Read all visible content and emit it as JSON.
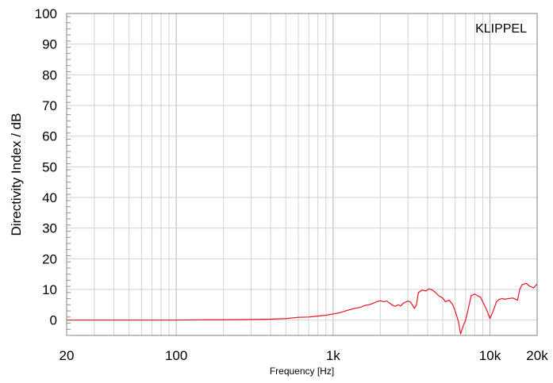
{
  "chart_data": {
    "type": "line",
    "xlabel": "Frequency [Hz]",
    "ylabel": "Directivity Index / dB",
    "x_scale": "log",
    "xlim": [
      20,
      20000
    ],
    "ylim": [
      -5,
      100
    ],
    "x_ticks": [
      {
        "value": 20,
        "label": "20"
      },
      {
        "value": 100,
        "label": "100"
      },
      {
        "value": 1000,
        "label": "1k"
      },
      {
        "value": 10000,
        "label": "10k"
      },
      {
        "value": 20000,
        "label": "20k"
      }
    ],
    "y_ticks": [
      {
        "value": 0,
        "label": "0"
      },
      {
        "value": 10,
        "label": "10"
      },
      {
        "value": 20,
        "label": "20"
      },
      {
        "value": 30,
        "label": "30"
      },
      {
        "value": 40,
        "label": "40"
      },
      {
        "value": 50,
        "label": "50"
      },
      {
        "value": 60,
        "label": "60"
      },
      {
        "value": 70,
        "label": "70"
      },
      {
        "value": 80,
        "label": "80"
      },
      {
        "value": 90,
        "label": "90"
      },
      {
        "value": 100,
        "label": "100"
      }
    ],
    "grid": true,
    "annotation": "KLIPPEL",
    "series": [
      {
        "color": "#e8141e",
        "x": [
          20,
          50,
          100,
          150,
          200,
          300,
          400,
          500,
          600,
          700,
          800,
          900,
          1000,
          1100,
          1200,
          1300,
          1400,
          1500,
          1600,
          1700,
          1800,
          1900,
          2000,
          2100,
          2200,
          2300,
          2400,
          2500,
          2600,
          2700,
          2800,
          3000,
          3100,
          3200,
          3300,
          3400,
          3500,
          3700,
          3900,
          4100,
          4300,
          4500,
          4700,
          5000,
          5200,
          5500,
          5800,
          6000,
          6300,
          6500,
          6800,
          7000,
          7300,
          7600,
          8000,
          8300,
          8700,
          9000,
          9500,
          10000,
          10500,
          11000,
          11500,
          12000,
          12500,
          13000,
          14000,
          15000,
          15500,
          16000,
          17000,
          18000,
          19000,
          20000
        ],
        "y": [
          0,
          0,
          0,
          0.1,
          0.1,
          0.2,
          0.3,
          0.5,
          0.9,
          1.0,
          1.3,
          1.6,
          2.0,
          2.4,
          3.0,
          3.5,
          3.9,
          4.2,
          4.8,
          5.0,
          5.5,
          6.0,
          6.3,
          6.0,
          6.2,
          5.5,
          4.8,
          4.5,
          5.0,
          4.6,
          5.5,
          6.2,
          6.0,
          5.0,
          3.8,
          5.0,
          9.0,
          9.8,
          9.5,
          10.2,
          9.8,
          9.0,
          8.0,
          7.2,
          6.0,
          6.5,
          5.0,
          3.0,
          -0.5,
          -4.5,
          -1.5,
          0.0,
          4.0,
          8.0,
          8.5,
          8.0,
          7.5,
          6.0,
          3.5,
          0.5,
          3.0,
          6.0,
          6.8,
          7.0,
          6.8,
          7.0,
          7.2,
          6.5,
          10.0,
          11.5,
          12.0,
          11.0,
          10.5,
          11.8
        ]
      }
    ]
  }
}
